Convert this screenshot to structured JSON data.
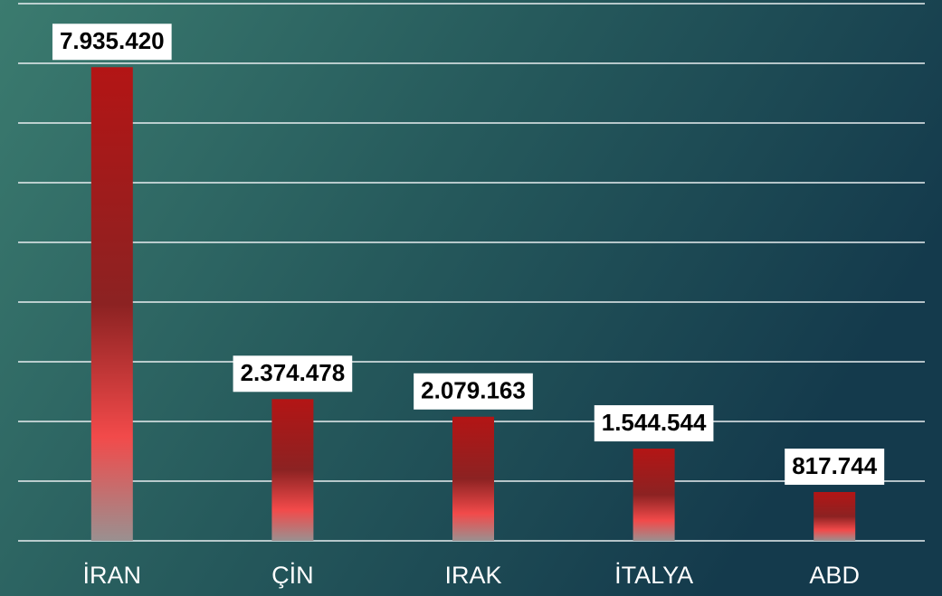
{
  "chart_data": {
    "type": "bar",
    "categories": [
      "İRAN",
      "ÇİN",
      "IRAK",
      "İTALYA",
      "ABD"
    ],
    "values": [
      7935420,
      2374478,
      2079163,
      1544544,
      817744
    ],
    "value_labels": [
      "7.935.420",
      "2.374.478",
      "2.079.163",
      "1.544.544",
      "817.744"
    ],
    "ylim": [
      0,
      9000000
    ],
    "yticks": [
      0,
      1000000,
      2000000,
      3000000,
      4000000,
      5000000,
      6000000,
      7000000,
      8000000,
      9000000
    ],
    "grid": true
  }
}
